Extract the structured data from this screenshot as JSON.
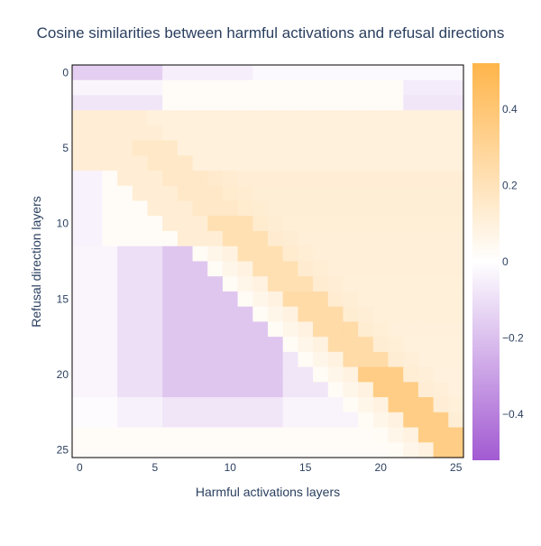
{
  "chart_data": {
    "type": "heatmap",
    "title": "Cosine similarities between harmful activations and refusal directions",
    "xlabel": "Harmful activations layers",
    "ylabel": "Refusal direction layers",
    "x_range": [
      0,
      25
    ],
    "y_range": [
      0,
      25
    ],
    "x_ticks": [
      "0",
      "5",
      "10",
      "15",
      "20",
      "25"
    ],
    "y_ticks": [
      "0",
      "5",
      "10",
      "15",
      "20",
      "25"
    ],
    "colorbar": {
      "range": [
        -0.52,
        0.52
      ],
      "ticks": [
        -0.4,
        -0.2,
        0,
        0.2,
        0.4
      ],
      "tick_labels": [
        "−0.4",
        "−0.2",
        "0",
        "0.2",
        "0.4"
      ],
      "colorscale": [
        "#a25ad2",
        "#ffffff",
        "#ffb54a"
      ]
    },
    "note": "values estimated from colors; matrix rows = refusal layer (y), columns = activation layer (x)"
  }
}
